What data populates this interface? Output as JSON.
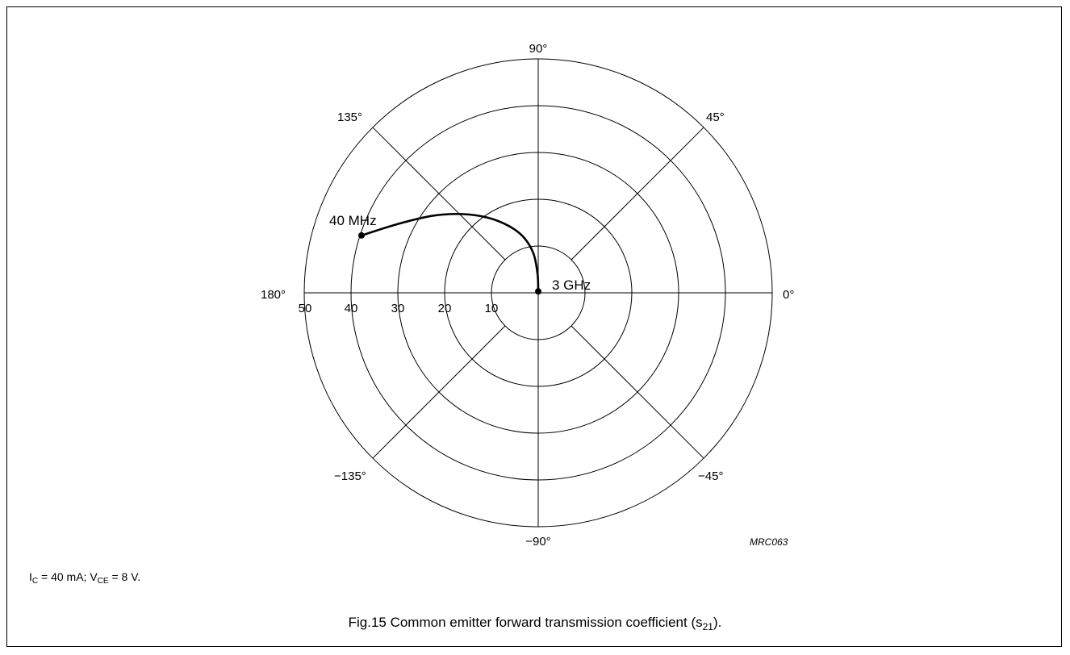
{
  "chart_data": {
    "type": "polar",
    "radial_ticks": [
      10,
      20,
      30,
      40,
      50
    ],
    "angle_labels": {
      "a90": "90°",
      "a45": "45°",
      "a0": "0°",
      "am45": "−45°",
      "am90": "−90°",
      "am135": "−135°",
      "a180": "180°",
      "a135": "135°"
    },
    "radial_tick_labels": [
      "50",
      "40",
      "30",
      "20",
      "10"
    ],
    "series": [
      {
        "points": [
          {
            "mag": 39.7,
            "angle_deg": 162
          },
          {
            "mag": 33.5,
            "angle_deg": 154
          },
          {
            "mag": 28.0,
            "angle_deg": 144
          },
          {
            "mag": 23.4,
            "angle_deg": 134
          },
          {
            "mag": 19.4,
            "angle_deg": 124
          },
          {
            "mag": 15.7,
            "angle_deg": 114
          },
          {
            "mag": 12.4,
            "angle_deg": 105
          },
          {
            "mag": 8.5,
            "angle_deg": 97
          },
          {
            "mag": 4.0,
            "angle_deg": 92
          },
          {
            "mag": 0.3,
            "angle_deg": 90
          }
        ],
        "start_label": "40 MHz",
        "end_label": "3 GHz"
      }
    ],
    "figure_code": "MRC063",
    "grid": true
  },
  "conditions": {
    "ic_prefix": "I",
    "ic_sub": "C",
    "ic_value": " = 40 mA; V",
    "vce_sub": "CE",
    "vce_value": " = 8 V."
  },
  "caption": {
    "prefix": "Fig.15  Common emitter forward transmission coefficient (s",
    "sub": "21",
    "suffix": ")."
  }
}
